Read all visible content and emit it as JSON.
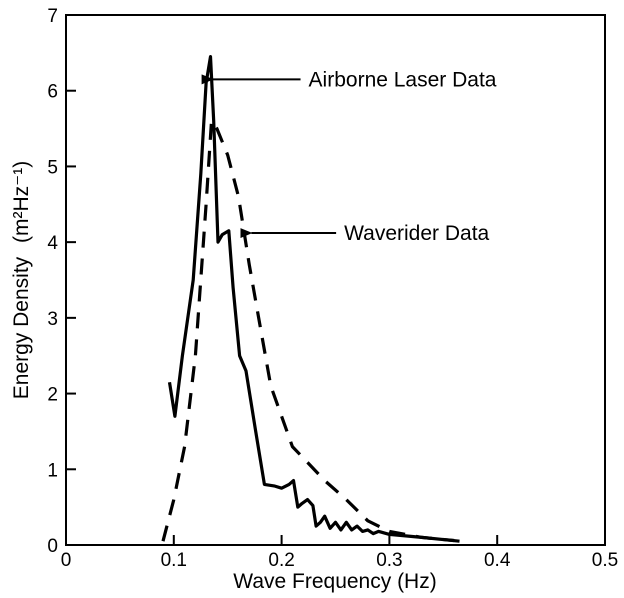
{
  "chart_data": {
    "type": "line",
    "xlabel": "Wave Frequency (Hz)",
    "ylabel": "Energy Density",
    "ylabel_unit": "(m²Hz⁻¹)",
    "xlim": [
      0,
      0.5
    ],
    "ylim": [
      0,
      7
    ],
    "xticks": [
      0,
      0.1,
      0.2,
      0.3,
      0.4,
      0.5
    ],
    "xtick_labels": [
      "0",
      "0.1",
      "0.2",
      "0.3",
      "0.4",
      "0.5"
    ],
    "yticks": [
      0,
      1,
      2,
      3,
      4,
      5,
      6,
      7
    ],
    "ytick_labels": [
      "0",
      "1",
      "2",
      "3",
      "4",
      "5",
      "6",
      "7"
    ],
    "grid": false,
    "series": [
      {
        "name": "Airborne Laser Data",
        "style": "solid",
        "color": "#000000",
        "x": [
          0.096,
          0.101,
          0.108,
          0.118,
          0.125,
          0.13,
          0.134,
          0.137,
          0.141,
          0.145,
          0.151,
          0.155,
          0.161,
          0.167,
          0.176,
          0.184,
          0.193,
          0.2,
          0.207,
          0.211,
          0.215,
          0.219,
          0.224,
          0.229,
          0.232,
          0.236,
          0.24,
          0.245,
          0.25,
          0.255,
          0.26,
          0.265,
          0.27,
          0.275,
          0.28,
          0.285,
          0.29,
          0.3,
          0.33,
          0.365
        ],
        "y": [
          2.15,
          1.7,
          2.5,
          3.5,
          4.9,
          6.1,
          6.45,
          5.6,
          4.0,
          4.1,
          4.15,
          3.4,
          2.5,
          2.3,
          1.5,
          0.8,
          0.78,
          0.75,
          0.8,
          0.85,
          0.5,
          0.55,
          0.6,
          0.52,
          0.25,
          0.3,
          0.38,
          0.22,
          0.3,
          0.2,
          0.3,
          0.2,
          0.25,
          0.18,
          0.2,
          0.15,
          0.18,
          0.14,
          0.1,
          0.05
        ]
      },
      {
        "name": "Waverider Data",
        "style": "dashed",
        "color": "#000000",
        "x": [
          0.09,
          0.1,
          0.11,
          0.12,
          0.13,
          0.135,
          0.14,
          0.15,
          0.16,
          0.17,
          0.18,
          0.19,
          0.2,
          0.21,
          0.22,
          0.24,
          0.26,
          0.28,
          0.3,
          0.33,
          0.36
        ],
        "y": [
          0.05,
          0.6,
          1.3,
          2.5,
          4.5,
          5.6,
          5.5,
          5.15,
          4.6,
          3.7,
          2.9,
          2.1,
          1.7,
          1.3,
          1.15,
          0.85,
          0.6,
          0.32,
          0.18,
          0.1,
          0.06
        ]
      }
    ],
    "annotations": [
      {
        "text": "Airborne Laser Data",
        "x": 0.225,
        "y": 6.15,
        "arrow_to": [
          0.136,
          6.15
        ]
      },
      {
        "text": "Waverider Data",
        "x": 0.258,
        "y": 4.12,
        "arrow_to": [
          0.172,
          4.12
        ]
      }
    ]
  }
}
